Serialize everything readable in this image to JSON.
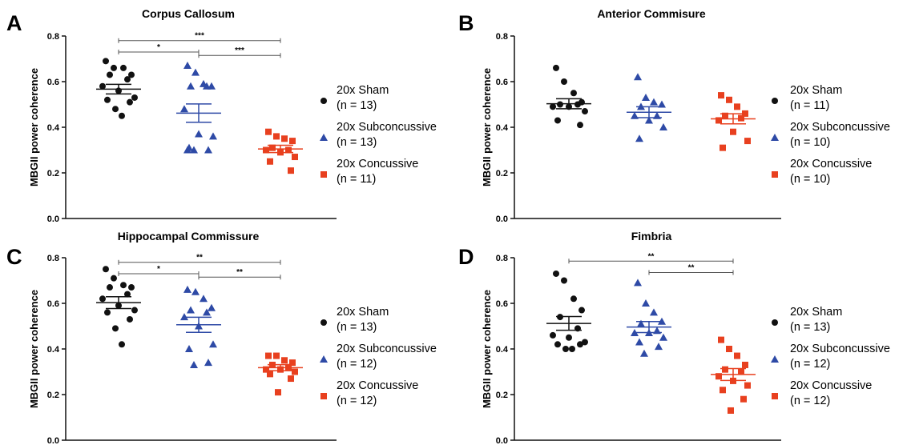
{
  "chart_data": [
    {
      "panel": "A",
      "type": "scatter",
      "title": "Corpus Callosum",
      "ylabel": "MBGII power coherence",
      "xlabel": "",
      "ylim": [
        0,
        0.8
      ],
      "yticks": [
        "0.0",
        "0.2",
        "0.4",
        "0.6",
        "0.8"
      ],
      "series": [
        {
          "name": "20x Sham",
          "n_label": "(n = 13)",
          "color": "#111111",
          "marker": "circle",
          "values": [
            0.69,
            0.66,
            0.66,
            0.63,
            0.63,
            0.61,
            0.58,
            0.56,
            0.53,
            0.52,
            0.51,
            0.48,
            0.45
          ],
          "mean": 0.567,
          "sem": 0.021
        },
        {
          "name": "20x Subconcussive",
          "n_label": "(n = 13)",
          "color": "#2e4aa6",
          "marker": "triangle",
          "values": [
            0.67,
            0.64,
            0.59,
            0.58,
            0.58,
            0.58,
            0.48,
            0.37,
            0.36,
            0.31,
            0.3,
            0.3,
            0.3
          ],
          "mean": 0.462,
          "sem": 0.04
        },
        {
          "name": "20x Concussive",
          "n_label": "(n = 11)",
          "color": "#e8401f",
          "marker": "square",
          "values": [
            0.38,
            0.36,
            0.35,
            0.34,
            0.31,
            0.3,
            0.3,
            0.29,
            0.27,
            0.25,
            0.21
          ],
          "mean": 0.305,
          "sem": 0.016
        }
      ],
      "significance": [
        {
          "from": 0,
          "to": 2,
          "label": "***",
          "y": 0.78
        },
        {
          "from": 0,
          "to": 1,
          "label": "*",
          "y": 0.73
        },
        {
          "from": 1,
          "to": 2,
          "label": "***",
          "y": 0.715
        }
      ]
    },
    {
      "panel": "B",
      "type": "scatter",
      "title": "Anterior Commisure",
      "ylabel": "MBGII power  coherence",
      "xlabel": "",
      "ylim": [
        0,
        0.8
      ],
      "yticks": [
        "0.0",
        "0.2",
        "0.4",
        "0.6",
        "0.8"
      ],
      "series": [
        {
          "name": "20x Sham",
          "n_label": "(n = 11)",
          "color": "#111111",
          "marker": "circle",
          "values": [
            0.66,
            0.6,
            0.55,
            0.51,
            0.5,
            0.5,
            0.49,
            0.49,
            0.47,
            0.43,
            0.41
          ],
          "mean": 0.503,
          "sem": 0.022
        },
        {
          "name": "20x Subconcussive",
          "n_label": "(n = 10)",
          "color": "#2e4aa6",
          "marker": "triangle",
          "values": [
            0.62,
            0.53,
            0.51,
            0.5,
            0.49,
            0.45,
            0.45,
            0.43,
            0.4,
            0.35
          ],
          "mean": 0.466,
          "sem": 0.024
        },
        {
          "name": "20x Concussive",
          "n_label": "(n = 10)",
          "color": "#e8401f",
          "marker": "square",
          "values": [
            0.54,
            0.52,
            0.49,
            0.46,
            0.45,
            0.44,
            0.43,
            0.38,
            0.34,
            0.31
          ],
          "mean": 0.437,
          "sem": 0.022
        }
      ],
      "significance": []
    },
    {
      "panel": "C",
      "type": "scatter",
      "title": "Hippocampal Commissure",
      "ylabel": "MBGII power coherence",
      "xlabel": "",
      "ylim": [
        0,
        0.8
      ],
      "yticks": [
        "0.0",
        "0.2",
        "0.4",
        "0.6",
        "0.8"
      ],
      "series": [
        {
          "name": "20x Sham",
          "n_label": "(n = 13)",
          "color": "#111111",
          "marker": "circle",
          "values": [
            0.75,
            0.71,
            0.68,
            0.67,
            0.67,
            0.64,
            0.62,
            0.59,
            0.57,
            0.56,
            0.53,
            0.49,
            0.42
          ],
          "mean": 0.603,
          "sem": 0.026
        },
        {
          "name": "20x Subconcussive",
          "n_label": "(n = 12)",
          "color": "#2e4aa6",
          "marker": "triangle",
          "values": [
            0.66,
            0.65,
            0.62,
            0.58,
            0.57,
            0.56,
            0.54,
            0.5,
            0.42,
            0.4,
            0.34,
            0.33
          ],
          "mean": 0.506,
          "sem": 0.033
        },
        {
          "name": "20x Concussive",
          "n_label": "(n = 12)",
          "color": "#e8401f",
          "marker": "square",
          "values": [
            0.37,
            0.37,
            0.35,
            0.34,
            0.33,
            0.32,
            0.31,
            0.31,
            0.3,
            0.29,
            0.27,
            0.21
          ],
          "mean": 0.318,
          "sem": 0.013
        }
      ],
      "significance": [
        {
          "from": 0,
          "to": 2,
          "label": "**",
          "y": 0.78
        },
        {
          "from": 0,
          "to": 1,
          "label": "*",
          "y": 0.73
        },
        {
          "from": 1,
          "to": 2,
          "label": "**",
          "y": 0.715
        }
      ]
    },
    {
      "panel": "D",
      "type": "scatter",
      "title": "Fimbria",
      "ylabel": "MBGII power coherence",
      "xlabel": "",
      "ylim": [
        0,
        0.8
      ],
      "yticks": [
        "0.0",
        "0.2",
        "0.4",
        "0.6",
        "0.8"
      ],
      "series": [
        {
          "name": "20x Sham",
          "n_label": "(n = 13)",
          "color": "#111111",
          "marker": "circle",
          "values": [
            0.73,
            0.7,
            0.62,
            0.57,
            0.54,
            0.49,
            0.46,
            0.45,
            0.43,
            0.42,
            0.42,
            0.4,
            0.4
          ],
          "mean": 0.512,
          "sem": 0.03
        },
        {
          "name": "20x Subconcussive",
          "n_label": "(n = 12)",
          "color": "#2e4aa6",
          "marker": "triangle",
          "values": [
            0.69,
            0.6,
            0.56,
            0.52,
            0.51,
            0.48,
            0.47,
            0.47,
            0.45,
            0.43,
            0.41,
            0.38
          ],
          "mean": 0.496,
          "sem": 0.024
        },
        {
          "name": "20x Concussive",
          "n_label": "(n = 12)",
          "color": "#e8401f",
          "marker": "square",
          "values": [
            0.44,
            0.4,
            0.37,
            0.33,
            0.31,
            0.3,
            0.28,
            0.26,
            0.24,
            0.22,
            0.18,
            0.13
          ],
          "mean": 0.288,
          "sem": 0.026
        }
      ],
      "significance": [
        {
          "from": 0,
          "to": 2,
          "label": "**",
          "y": 0.785
        },
        {
          "from": 1,
          "to": 2,
          "label": "**",
          "y": 0.735
        }
      ]
    }
  ]
}
